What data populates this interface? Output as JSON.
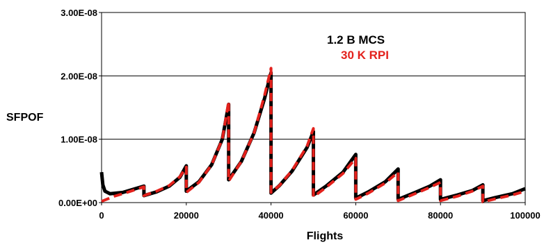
{
  "chart_data": {
    "type": "line",
    "xlabel": "Flights",
    "ylabel": "SFPOF",
    "xlim": [
      0,
      100000
    ],
    "ylim": [
      0,
      3e-08
    ],
    "x_ticks": [
      0,
      20000,
      40000,
      60000,
      80000,
      100000
    ],
    "x_tick_labels": [
      "0",
      "20000",
      "40000",
      "60000",
      "80000",
      "100000"
    ],
    "y_ticks": [
      0,
      1e-08,
      2e-08,
      3e-08
    ],
    "y_tick_labels": [
      "0.00E+00",
      "1.00E-08",
      "2.00E-08",
      "3.00E-08"
    ],
    "grid": {
      "horizontal": true,
      "vertical": false
    },
    "legend_position": "top-right",
    "series": [
      {
        "name": "1.2 B MCS",
        "color": "#000000",
        "style": "solid",
        "segments": [
          {
            "x": [
              0,
              300,
              800,
              2000,
              5000,
              10000
            ],
            "y": [
              4.8e-09,
              2.8e-09,
              1.8e-09,
              1.4e-09,
              1.6e-09,
              2.6e-09
            ]
          },
          {
            "x": [
              10000,
              13000,
              16000,
              18500,
              20000
            ],
            "y": [
              1.1e-09,
              1.7e-09,
              2.6e-09,
              4e-09,
              5.8e-09
            ]
          },
          {
            "x": [
              20000,
              23000,
              26000,
              28500,
              30000
            ],
            "y": [
              1.8e-09,
              3.3e-09,
              6e-09,
              1e-08,
              1.55e-08
            ]
          },
          {
            "x": [
              30000,
              33000,
              36000,
              38500,
              40000
            ],
            "y": [
              3.6e-09,
              6.5e-09,
              1.1e-08,
              1.65e-08,
              2.05e-08
            ]
          },
          {
            "x": [
              40000,
              42000,
              45000,
              48500,
              50000
            ],
            "y": [
              1.5e-09,
              2.7e-09,
              5e-09,
              8.7e-09,
              1.12e-08
            ]
          },
          {
            "x": [
              50000,
              53000,
              57000,
              60000
            ],
            "y": [
              1.2e-09,
              2.6e-09,
              4.8e-09,
              7.6e-09
            ]
          },
          {
            "x": [
              60000,
              63000,
              67000,
              70000
            ],
            "y": [
              7e-10,
              1.7e-09,
              3.3e-09,
              5.3e-09
            ]
          },
          {
            "x": [
              70000,
              74000,
              77500,
              80000
            ],
            "y": [
              5e-10,
              1.6e-09,
              2.6e-09,
              3.6e-09
            ]
          },
          {
            "x": [
              80000,
              84000,
              87500,
              90000
            ],
            "y": [
              5e-10,
              1.2e-09,
              1.9e-09,
              2.8e-09
            ]
          },
          {
            "x": [
              90000,
              93000,
              97000,
              100000
            ],
            "y": [
              3e-10,
              8e-10,
              1.4e-09,
              2.2e-09
            ]
          }
        ]
      },
      {
        "name": "30 K RPI",
        "color": "#e3211c",
        "style": "dashed",
        "segments": [
          {
            "x": [
              0,
              3000,
              6000,
              10000
            ],
            "y": [
              2e-10,
              1e-09,
              1.6e-09,
              2.5e-09
            ]
          },
          {
            "x": [
              10000,
              13000,
              16000,
              18500,
              20000
            ],
            "y": [
              1.1e-09,
              1.8e-09,
              2.7e-09,
              4.1e-09,
              5.6e-09
            ]
          },
          {
            "x": [
              20000,
              23000,
              26000,
              28500,
              30000
            ],
            "y": [
              1.6e-09,
              3.2e-09,
              6e-09,
              1e-08,
              1.6e-08
            ]
          },
          {
            "x": [
              30000,
              33000,
              36000,
              38500,
              40000
            ],
            "y": [
              3.4e-09,
              6.5e-09,
              1.1e-08,
              1.7e-08,
              2.12e-08
            ]
          },
          {
            "x": [
              40000,
              42000,
              45000,
              48500,
              50000
            ],
            "y": [
              1.6e-09,
              2.7e-09,
              5.1e-09,
              8.9e-09,
              1.17e-08
            ]
          },
          {
            "x": [
              50000,
              53000,
              57000,
              60000
            ],
            "y": [
              9e-10,
              2.4e-09,
              4.6e-09,
              7e-09
            ]
          },
          {
            "x": [
              60000,
              63000,
              67000,
              70000
            ],
            "y": [
              5e-10,
              1.5e-09,
              3.1e-09,
              4.8e-09
            ]
          },
          {
            "x": [
              70000,
              74000,
              77500,
              80000
            ],
            "y": [
              3e-10,
              1.4e-09,
              2.4e-09,
              3.2e-09
            ]
          },
          {
            "x": [
              80000,
              84000,
              87500,
              90000
            ],
            "y": [
              3e-10,
              1e-09,
              1.8e-09,
              2.6e-09
            ]
          },
          {
            "x": [
              90000,
              93000,
              97000,
              100000
            ],
            "y": [
              1e-10,
              6e-10,
              1.2e-09,
              1.8e-09
            ]
          }
        ]
      }
    ]
  }
}
